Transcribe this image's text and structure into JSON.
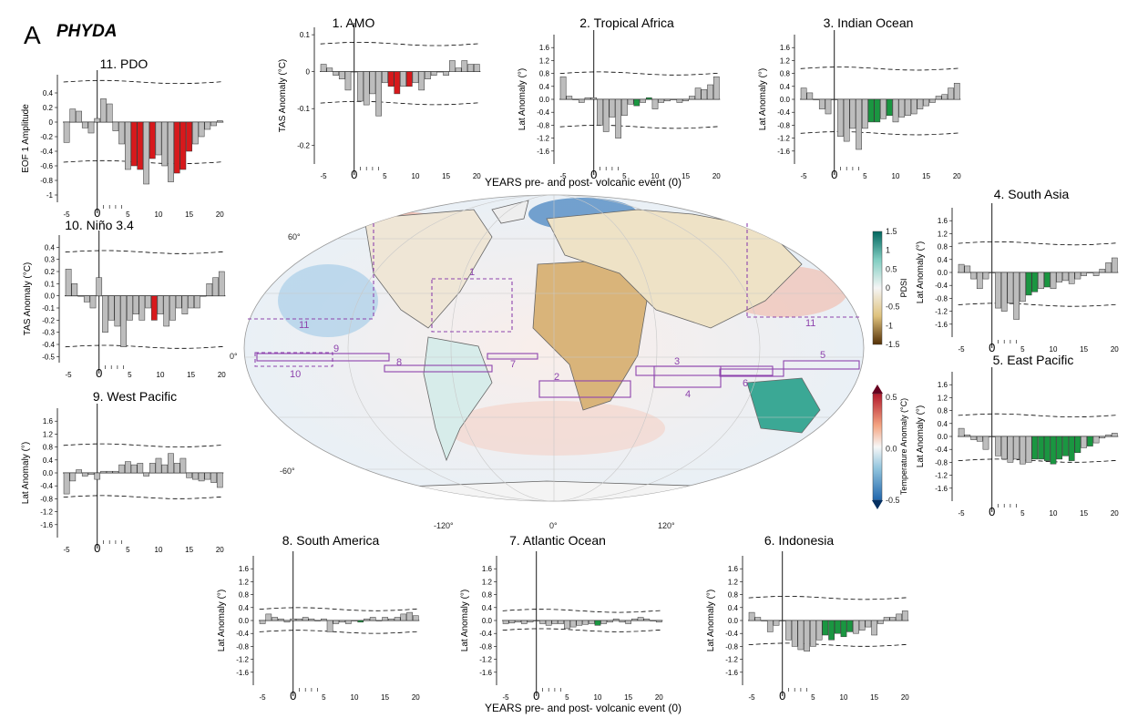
{
  "panel_letter": "A",
  "dataset_title": "PHYDA",
  "shared_xlabel": "YEARS pre- and post- volcanic event (0)",
  "colors": {
    "gray": "#bdbdbd",
    "red": "#d7191c",
    "green": "#1a9641",
    "box": "#8e44ad",
    "land_outline": "#666666"
  },
  "map": {
    "lat_labels": [
      "60°",
      "0°",
      "-60°"
    ],
    "lon_labels": [
      "-120°",
      "0°",
      "120°"
    ],
    "region_labels": [
      "1",
      "2",
      "3",
      "4",
      "5",
      "6",
      "7",
      "8",
      "9",
      "10",
      "11",
      "11"
    ],
    "pdsi_colorbar": {
      "label": "PDSI",
      "ticks": [
        "1.5",
        "1",
        "0.5",
        "0",
        "-0.5",
        "-1",
        "-1.5"
      ]
    },
    "temp_colorbar": {
      "label": "Temperature Anomaly (°C)",
      "ticks": [
        "0.5",
        "0.0",
        "-0.5"
      ]
    }
  },
  "chart_data": [
    {
      "id": "pdo",
      "type": "bar",
      "title": "11. PDO",
      "ylabel": "EOF 1 Amplitude",
      "x": [
        -5,
        -4,
        -3,
        -2,
        -1,
        0,
        1,
        2,
        3,
        4,
        5,
        6,
        7,
        8,
        9,
        10,
        11,
        12,
        13,
        14,
        15,
        16,
        17,
        18,
        19,
        20
      ],
      "values": [
        -0.28,
        0.18,
        0.15,
        -0.08,
        -0.15,
        0.05,
        0.32,
        0.25,
        -0.12,
        -0.3,
        -0.65,
        -0.6,
        -0.65,
        -0.85,
        -0.5,
        -0.45,
        -0.6,
        -0.82,
        -0.7,
        -0.65,
        -0.4,
        -0.3,
        -0.2,
        -0.1,
        -0.05,
        0.02
      ],
      "highlight": [
        6,
        7,
        9,
        13,
        14,
        15
      ],
      "highlight_color": "red",
      "ylim": [
        -1.1,
        0.65
      ],
      "yticks": [
        "0.4",
        "0.2",
        "0",
        "-0.2",
        "-0.4",
        "-0.6",
        "-0.8",
        "-1"
      ],
      "upper_ci": 0.55,
      "lower_ci": -0.55
    },
    {
      "id": "amo",
      "type": "bar",
      "title": "1. AMO",
      "ylabel": "TAS Anomaly (°C)",
      "x": [
        -5,
        -4,
        -3,
        -2,
        -1,
        0,
        1,
        2,
        3,
        4,
        5,
        6,
        7,
        8,
        9,
        10,
        11,
        12,
        13,
        14,
        15,
        16,
        17,
        18,
        19,
        20
      ],
      "values": [
        0.02,
        0.01,
        -0.01,
        -0.02,
        -0.05,
        0.0,
        -0.08,
        -0.09,
        -0.06,
        -0.12,
        -0.03,
        -0.04,
        -0.06,
        -0.04,
        -0.04,
        -0.03,
        -0.05,
        -0.02,
        -0.01,
        0.0,
        -0.01,
        0.03,
        0.01,
        0.03,
        0.02,
        0.02
      ],
      "highlight": [
        6,
        7,
        9
      ],
      "highlight_color": "red",
      "ylim": [
        -0.25,
        0.12
      ],
      "yticks": [
        "0.1",
        "0",
        "-0.1",
        "-0.2"
      ],
      "upper_ci": 0.075,
      "lower_ci": -0.085
    },
    {
      "id": "tropical_africa",
      "type": "bar",
      "title": "2. Tropical Africa",
      "ylabel": "Lat Anomaly (°)",
      "x": [
        -5,
        -4,
        -3,
        -2,
        -1,
        0,
        1,
        2,
        3,
        4,
        5,
        6,
        7,
        8,
        9,
        10,
        11,
        12,
        13,
        14,
        15,
        16,
        17,
        18,
        19,
        20
      ],
      "values": [
        0.7,
        0.1,
        0.0,
        -0.1,
        0.05,
        0.05,
        -0.8,
        -1.0,
        -0.55,
        -1.2,
        -0.5,
        -0.15,
        -0.2,
        -0.1,
        0.05,
        -0.3,
        -0.1,
        -0.05,
        0.0,
        -0.1,
        -0.05,
        0.1,
        0.35,
        0.3,
        0.45,
        0.7
      ],
      "highlight": [
        7,
        9
      ],
      "highlight_color": "green",
      "ylim": [
        -2.0,
        2.0
      ],
      "yticks": [
        "1.6",
        "1.2",
        "0.8",
        "0.4",
        "0.0",
        "-0.4",
        "-0.8",
        "-1.2",
        "-1.6"
      ],
      "upper_ci": 0.8,
      "lower_ci": -0.85
    },
    {
      "id": "indian_ocean",
      "type": "bar",
      "title": "3. Indian Ocean",
      "ylabel": "Lat Anomaly (°)",
      "x": [
        -5,
        -4,
        -3,
        -2,
        -1,
        0,
        1,
        2,
        3,
        4,
        5,
        6,
        7,
        8,
        9,
        10,
        11,
        12,
        13,
        14,
        15,
        16,
        17,
        18,
        19,
        20
      ],
      "values": [
        0.35,
        0.2,
        0.0,
        -0.3,
        -0.45,
        0.0,
        -1.15,
        -1.3,
        -0.9,
        -1.55,
        -0.9,
        -0.7,
        -0.7,
        -0.6,
        -0.5,
        -0.7,
        -0.55,
        -0.5,
        -0.45,
        -0.3,
        -0.2,
        -0.1,
        0.1,
        0.15,
        0.35,
        0.5
      ],
      "highlight": [
        6,
        7,
        9
      ],
      "highlight_color": "green",
      "ylim": [
        -2.0,
        2.0
      ],
      "yticks": [
        "1.6",
        "1.2",
        "0.8",
        "0.4",
        "0.0",
        "-0.4",
        "-0.8",
        "-1.2",
        "-1.6"
      ],
      "upper_ci": 0.95,
      "lower_ci": -1.05
    },
    {
      "id": "south_asia",
      "type": "bar",
      "title": "4. South Asia",
      "ylabel": "Lat Anomaly (°)",
      "x": [
        -5,
        -4,
        -3,
        -2,
        -1,
        0,
        1,
        2,
        3,
        4,
        5,
        6,
        7,
        8,
        9,
        10,
        11,
        12,
        13,
        14,
        15,
        16,
        17,
        18,
        19,
        20
      ],
      "values": [
        0.25,
        0.2,
        -0.2,
        -0.5,
        -0.2,
        0.0,
        -1.1,
        -1.2,
        -0.95,
        -1.45,
        -0.9,
        -0.7,
        -0.6,
        -0.5,
        -0.45,
        -0.5,
        -0.3,
        -0.25,
        -0.35,
        -0.2,
        -0.1,
        0.0,
        -0.1,
        0.1,
        0.3,
        0.45
      ],
      "highlight": [
        6,
        7,
        9
      ],
      "highlight_color": "green",
      "ylim": [
        -2.0,
        2.0
      ],
      "yticks": [
        "1.6",
        "1.2",
        "0.8",
        "0.4",
        "0.0",
        "-0.4",
        "-0.8",
        "-1.2",
        "-1.6"
      ],
      "upper_ci": 0.9,
      "lower_ci": -1.0
    },
    {
      "id": "east_pacific",
      "type": "bar",
      "title": "5. East Pacific",
      "ylabel": "Lat Anomaly (°)",
      "x": [
        -5,
        -4,
        -3,
        -2,
        -1,
        0,
        1,
        2,
        3,
        4,
        5,
        6,
        7,
        8,
        9,
        10,
        11,
        12,
        13,
        14,
        15,
        16,
        17,
        18,
        19,
        20
      ],
      "values": [
        0.25,
        0.05,
        -0.1,
        -0.15,
        -0.4,
        0.0,
        -0.6,
        -0.7,
        -0.8,
        -0.7,
        -0.85,
        -0.8,
        -0.7,
        -0.7,
        -0.75,
        -0.85,
        -0.7,
        -0.6,
        -0.75,
        -0.5,
        -0.35,
        -0.3,
        -0.2,
        -0.05,
        0.05,
        0.1
      ],
      "highlight": [
        7,
        8,
        9,
        10,
        11,
        12,
        13,
        14,
        16
      ],
      "highlight_color": "green",
      "ylim": [
        -2.0,
        2.0
      ],
      "yticks": [
        "1.6",
        "1.2",
        "0.8",
        "0.4",
        "0.0",
        "-0.4",
        "-0.8",
        "-1.2",
        "-1.6"
      ],
      "upper_ci": 0.65,
      "lower_ci": -0.75
    },
    {
      "id": "indonesia",
      "type": "bar",
      "title": "6. Indonesia",
      "ylabel": "Lat Anomaly (°)",
      "x": [
        -5,
        -4,
        -3,
        -2,
        -1,
        0,
        1,
        2,
        3,
        4,
        5,
        6,
        7,
        8,
        9,
        10,
        11,
        12,
        13,
        14,
        15,
        16,
        17,
        18,
        19,
        20
      ],
      "values": [
        0.25,
        0.1,
        0.0,
        -0.35,
        -0.15,
        0.0,
        -0.6,
        -0.8,
        -0.9,
        -0.95,
        -0.8,
        -0.6,
        -0.45,
        -0.6,
        -0.4,
        -0.5,
        -0.35,
        -0.4,
        -0.3,
        -0.2,
        -0.45,
        -0.1,
        0.1,
        0.1,
        0.2,
        0.3
      ],
      "highlight": [
        7,
        8,
        9,
        10,
        11
      ],
      "highlight_color": "green",
      "ylim": [
        -2.0,
        2.0
      ],
      "yticks": [
        "1.6",
        "1.2",
        "0.8",
        "0.4",
        "0.0",
        "-0.4",
        "-0.8",
        "-1.2",
        "-1.6"
      ],
      "upper_ci": 0.7,
      "lower_ci": -0.75
    },
    {
      "id": "atlantic_ocean",
      "type": "bar",
      "title": "7. Atlantic Ocean",
      "ylabel": "Lat Anomaly (°)",
      "x": [
        -5,
        -4,
        -3,
        -2,
        -1,
        0,
        1,
        2,
        3,
        4,
        5,
        6,
        7,
        8,
        9,
        10,
        11,
        12,
        13,
        14,
        15,
        16,
        17,
        18,
        19,
        20
      ],
      "values": [
        -0.1,
        -0.08,
        -0.05,
        -0.1,
        -0.05,
        0.0,
        -0.1,
        -0.15,
        -0.1,
        -0.1,
        -0.25,
        -0.2,
        -0.15,
        -0.12,
        -0.1,
        -0.15,
        -0.1,
        -0.05,
        0.05,
        -0.05,
        -0.1,
        0.05,
        0.1,
        0.05,
        0.0,
        -0.05
      ],
      "highlight": [
        10
      ],
      "highlight_color": "green",
      "ylim": [
        -2.0,
        2.0
      ],
      "yticks": [
        "1.6",
        "1.2",
        "0.8",
        "0.4",
        "0.0",
        "-0.4",
        "-0.8",
        "-1.2",
        "-1.6"
      ],
      "upper_ci": 0.3,
      "lower_ci": -0.3
    },
    {
      "id": "south_america",
      "type": "bar",
      "title": "8. South America",
      "ylabel": "Lat Anomaly (°)",
      "x": [
        -5,
        -4,
        -3,
        -2,
        -1,
        0,
        1,
        2,
        3,
        4,
        5,
        6,
        7,
        8,
        9,
        10,
        11,
        12,
        13,
        14,
        15,
        16,
        17,
        18,
        19,
        20
      ],
      "values": [
        -0.1,
        0.2,
        0.1,
        0.05,
        -0.05,
        0.05,
        0.05,
        0.1,
        0.05,
        0.0,
        0.05,
        -0.35,
        -0.1,
        -0.05,
        -0.1,
        0.0,
        -0.05,
        0.05,
        0.1,
        0.0,
        0.1,
        0.05,
        0.1,
        0.2,
        0.25,
        0.15
      ],
      "highlight": [
        11
      ],
      "highlight_color": "green",
      "ylim": [
        -2.0,
        2.0
      ],
      "yticks": [
        "1.6",
        "1.2",
        "0.8",
        "0.4",
        "0.0",
        "-0.4",
        "-0.8",
        "-1.2",
        "-1.6"
      ],
      "upper_ci": 0.35,
      "lower_ci": -0.35
    },
    {
      "id": "nino34",
      "type": "bar",
      "title": "10. Niño 3.4",
      "ylabel": "TAS Anomaly (°C)",
      "x": [
        -5,
        -4,
        -3,
        -2,
        -1,
        0,
        1,
        2,
        3,
        4,
        5,
        6,
        7,
        8,
        9,
        10,
        11,
        12,
        13,
        14,
        15,
        16,
        17,
        18,
        19,
        20
      ],
      "values": [
        0.22,
        0.1,
        0.0,
        -0.05,
        -0.1,
        0.15,
        -0.3,
        -0.2,
        -0.25,
        -0.42,
        -0.2,
        -0.15,
        -0.2,
        -0.1,
        -0.2,
        -0.15,
        -0.25,
        -0.2,
        -0.1,
        -0.15,
        -0.1,
        -0.1,
        0.0,
        0.1,
        0.15,
        0.2
      ],
      "highlight": [
        9
      ],
      "highlight_color": "red",
      "ylim": [
        -0.55,
        0.5
      ],
      "yticks": [
        "0.4",
        "0.3",
        "0.2",
        "0.1",
        "0.0",
        "-0.1",
        "-0.2",
        "-0.3",
        "-0.4",
        "-0.5"
      ],
      "upper_ci": 0.36,
      "lower_ci": -0.42
    },
    {
      "id": "west_pacific",
      "type": "bar",
      "title": "9. West Pacific",
      "ylabel": "Lat Anomaly (°)",
      "x": [
        -5,
        -4,
        -3,
        -2,
        -1,
        0,
        1,
        2,
        3,
        4,
        5,
        6,
        7,
        8,
        9,
        10,
        11,
        12,
        13,
        14,
        15,
        16,
        17,
        18,
        19,
        20
      ],
      "values": [
        -0.65,
        -0.25,
        0.1,
        -0.1,
        -0.05,
        -0.2,
        0.05,
        0.05,
        0.05,
        0.25,
        0.35,
        0.25,
        0.3,
        -0.1,
        0.3,
        0.45,
        0.25,
        0.6,
        0.3,
        0.45,
        -0.15,
        -0.2,
        -0.25,
        -0.2,
        -0.3,
        -0.45
      ],
      "highlight": [],
      "highlight_color": "green",
      "ylim": [
        -2.0,
        2.0
      ],
      "yticks": [
        "1.6",
        "1.2",
        "0.8",
        "0.4",
        "0.0",
        "-0.4",
        "-0.8",
        "-1.2",
        "-1.6"
      ],
      "upper_ci": 0.85,
      "lower_ci": -0.75
    }
  ]
}
